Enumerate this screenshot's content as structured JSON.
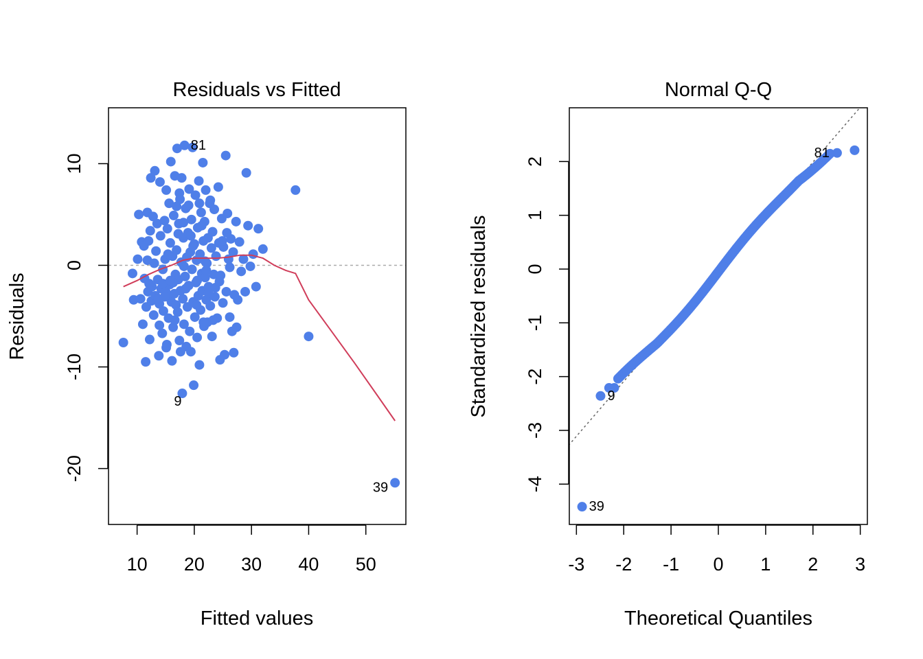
{
  "colors": {
    "points": "#4F7FE8",
    "smooth": "#D03D5A",
    "refline": "#AAAAAA",
    "qqline": "#666666",
    "frame": "#000000"
  },
  "chart_data": [
    {
      "type": "scatter",
      "title": "Residuals vs Fitted",
      "xlabel": "Fitted values",
      "ylabel": "Residuals",
      "xlim": [
        5,
        57
      ],
      "ylim": [
        -25.5,
        15.5
      ],
      "xticks": [
        10,
        20,
        30,
        40,
        50
      ],
      "yticks": [
        -20,
        -10,
        0,
        10
      ],
      "hline": 0,
      "points": [
        [
          7.6,
          -7.6
        ],
        [
          9.2,
          -0.8
        ],
        [
          9.4,
          -3.4
        ],
        [
          10.1,
          0.6
        ],
        [
          10.3,
          5
        ],
        [
          10.6,
          -3.3
        ],
        [
          10.8,
          2.3
        ],
        [
          11,
          -5.8
        ],
        [
          11.2,
          1.9
        ],
        [
          11.3,
          -1.3
        ],
        [
          11.5,
          -9.5
        ],
        [
          11.6,
          -4.1
        ],
        [
          11.8,
          5.2
        ],
        [
          11.9,
          -2.6
        ],
        [
          12,
          2.4
        ],
        [
          12.2,
          -7.3
        ],
        [
          12.3,
          3.4
        ],
        [
          12.4,
          8.6
        ],
        [
          12.5,
          -3.5
        ],
        [
          12.6,
          -2.1
        ],
        [
          12.8,
          4.8
        ],
        [
          12.9,
          -4.9
        ],
        [
          13,
          0.2
        ],
        [
          13.1,
          9.3
        ],
        [
          13.2,
          -3
        ],
        [
          13.3,
          1.4
        ],
        [
          13.5,
          4.1
        ],
        [
          13.6,
          -1.4
        ],
        [
          13.8,
          -8.9
        ],
        [
          13.9,
          -3.8
        ],
        [
          14,
          8.2
        ],
        [
          14.1,
          2.9
        ],
        [
          14.2,
          -2.3
        ],
        [
          14.4,
          -6.7
        ],
        [
          14.5,
          -0.4
        ],
        [
          14.6,
          -4.5
        ],
        [
          14.8,
          4.4
        ],
        [
          14.9,
          0.6
        ],
        [
          15,
          -2.6
        ],
        [
          15.1,
          7.4
        ],
        [
          15.2,
          -7.8
        ],
        [
          15.3,
          3.6
        ],
        [
          15.4,
          -3.1
        ],
        [
          15.5,
          -5.2
        ],
        [
          15.6,
          6.1
        ],
        [
          15.7,
          -1.9
        ],
        [
          15.8,
          2.2
        ],
        [
          15.9,
          10.2
        ],
        [
          16,
          -3.6
        ],
        [
          16.1,
          -9.4
        ],
        [
          16.2,
          0.9
        ],
        [
          16.3,
          -6.1
        ],
        [
          16.4,
          4.9
        ],
        [
          16.5,
          -2.8
        ],
        [
          16.6,
          8.8
        ],
        [
          16.7,
          -0.9
        ],
        [
          16.8,
          -3.9
        ],
        [
          16.9,
          1.5
        ],
        [
          17,
          11.5
        ],
        [
          17.1,
          -4.6
        ],
        [
          17.2,
          -1.4
        ],
        [
          17.3,
          4.1
        ],
        [
          17.4,
          -7.4
        ],
        [
          17.5,
          6.5
        ],
        [
          17.6,
          -2.5
        ],
        [
          17.7,
          0.3
        ],
        [
          17.8,
          8.6
        ],
        [
          17.9,
          -12.6
        ],
        [
          18,
          -3.3
        ],
        [
          18.1,
          2.7
        ],
        [
          18.2,
          -5.8
        ],
        [
          18.3,
          11.8
        ],
        [
          18.4,
          -1.1
        ],
        [
          18.5,
          5.6
        ],
        [
          18.6,
          -8
        ],
        [
          18.7,
          0.8
        ],
        [
          18.8,
          -4.1
        ],
        [
          18.9,
          3.2
        ],
        [
          19,
          -2
        ],
        [
          19.1,
          7.5
        ],
        [
          19.2,
          -6.5
        ],
        [
          19.3,
          1.3
        ],
        [
          19.4,
          -8.5
        ],
        [
          19.5,
          4.5
        ],
        [
          19.6,
          -0.4
        ],
        [
          19.7,
          11.6
        ],
        [
          19.8,
          -3.6
        ],
        [
          19.9,
          -11.8
        ],
        [
          20,
          2.1
        ],
        [
          20.1,
          -5.1
        ],
        [
          20.2,
          6.9
        ],
        [
          20.3,
          -1.7
        ],
        [
          20.4,
          0.5
        ],
        [
          20.5,
          -7.1
        ],
        [
          20.6,
          3.7
        ],
        [
          20.7,
          -3
        ],
        [
          20.8,
          8.3
        ],
        [
          20.9,
          -9.8
        ],
        [
          21,
          1.1
        ],
        [
          21.1,
          -4.4
        ],
        [
          21.2,
          5.2
        ],
        [
          21.3,
          -0.8
        ],
        [
          21.4,
          -2.5
        ],
        [
          21.5,
          10.1
        ],
        [
          21.6,
          2.4
        ],
        [
          21.7,
          -6
        ],
        [
          21.8,
          4.3
        ],
        [
          21.9,
          -1.2
        ],
        [
          22,
          7.4
        ],
        [
          22.1,
          -3.4
        ],
        [
          22.2,
          0.2
        ],
        [
          22.3,
          -5.6
        ],
        [
          22.4,
          2.7
        ],
        [
          22.5,
          -2.1
        ],
        [
          22.7,
          6.1
        ],
        [
          22.8,
          -4
        ],
        [
          23,
          1.7
        ],
        [
          23.1,
          -7
        ],
        [
          23.2,
          3.3
        ],
        [
          23.4,
          -0.9
        ],
        [
          23.5,
          5.5
        ],
        [
          23.6,
          -3.1
        ],
        [
          23.8,
          0.9
        ],
        [
          24,
          -5.2
        ],
        [
          24.2,
          7.7
        ],
        [
          24.3,
          2.2
        ],
        [
          24.5,
          -9.3
        ],
        [
          24.6,
          -1
        ],
        [
          24.8,
          4.6
        ],
        [
          25,
          -3.7
        ],
        [
          25.1,
          1.8
        ],
        [
          25.3,
          -8.8
        ],
        [
          25.5,
          10.8
        ],
        [
          25.6,
          -2.6
        ],
        [
          25.8,
          5.1
        ],
        [
          26,
          0.6
        ],
        [
          26.2,
          -5.1
        ],
        [
          26.4,
          2.6
        ],
        [
          26.6,
          -6.5
        ],
        [
          26.8,
          1.3
        ],
        [
          27,
          -2.9
        ],
        [
          27.3,
          4.3
        ],
        [
          27.6,
          -3.4
        ],
        [
          27.9,
          2.3
        ],
        [
          28.2,
          -0.6
        ],
        [
          28.6,
          0.6
        ],
        [
          28.9,
          -2.6
        ],
        [
          29.1,
          9.1
        ],
        [
          29.4,
          3.9
        ],
        [
          29.8,
          -0.1
        ],
        [
          30.3,
          1.1
        ],
        [
          30.8,
          -2.1
        ],
        [
          31.2,
          3.6
        ],
        [
          32,
          1.6
        ],
        [
          37.7,
          7.4
        ],
        [
          40,
          -7
        ],
        [
          55.1,
          -21.4
        ],
        [
          16.3,
          -1.7
        ],
        [
          18.5,
          -2.3
        ],
        [
          20.5,
          -1.5
        ],
        [
          22.5,
          -2.7
        ],
        [
          14.5,
          -1.8
        ],
        [
          17.2,
          3.1
        ],
        [
          19.8,
          1.9
        ],
        [
          21.9,
          0.4
        ],
        [
          13.7,
          -3.3
        ],
        [
          15.8,
          -1.5
        ],
        [
          23.7,
          -2.2
        ],
        [
          19,
          5.9
        ],
        [
          16.6,
          -5.4
        ],
        [
          24.4,
          -1.6
        ],
        [
          12.1,
          -1.8
        ],
        [
          20.4,
          -3.9
        ],
        [
          26.2,
          -0.2
        ],
        [
          18.2,
          -0.1
        ],
        [
          15.4,
          1.1
        ],
        [
          21.3,
          3.9
        ],
        [
          17.6,
          -8.5
        ],
        [
          22.8,
          6.4
        ],
        [
          13.9,
          -5.9
        ],
        [
          25.7,
          3.2
        ],
        [
          19.4,
          2.9
        ],
        [
          16.9,
          5.8
        ],
        [
          23.3,
          -5.4
        ],
        [
          11.8,
          0.5
        ],
        [
          20.9,
          6.1
        ],
        [
          14.8,
          -3.1
        ],
        [
          27.4,
          -6.1
        ],
        [
          24.9,
          2.4
        ],
        [
          18.1,
          4.2
        ],
        [
          22.1,
          -0.5
        ],
        [
          15.1,
          -8.1
        ],
        [
          26.9,
          -8.6
        ],
        [
          17.4,
          7.1
        ],
        [
          21.6,
          -5.6
        ]
      ],
      "labels": [
        {
          "text": "81",
          "x": 18.3,
          "y": 11.8
        },
        {
          "text": "9",
          "x": 17.9,
          "y": -12.6
        },
        {
          "text": "39",
          "x": 55.1,
          "y": -21.4
        }
      ],
      "smooth": [
        [
          7.6,
          -2.1
        ],
        [
          10,
          -1.5
        ],
        [
          12,
          -0.9
        ],
        [
          14,
          -0.4
        ],
        [
          16,
          0
        ],
        [
          18,
          0.5
        ],
        [
          20,
          0.7
        ],
        [
          22,
          0.7
        ],
        [
          24,
          0.7
        ],
        [
          26,
          0.8
        ],
        [
          28,
          1
        ],
        [
          30,
          1
        ],
        [
          32,
          0.7
        ],
        [
          34,
          0
        ],
        [
          36,
          -0.5
        ],
        [
          37.7,
          -0.8
        ],
        [
          40,
          -3.4
        ],
        [
          44,
          -6.5
        ],
        [
          48,
          -9.6
        ],
        [
          52,
          -12.8
        ],
        [
          55.1,
          -15.3
        ]
      ]
    },
    {
      "type": "scatter",
      "title": "Normal Q-Q",
      "xlabel": "Theoretical Quantiles",
      "ylabel": "Standardized residuals",
      "xlim": [
        -3.15,
        3.15
      ],
      "ylim": [
        -4.75,
        3
      ],
      "xticks": [
        -3,
        -2,
        -1,
        0,
        1,
        2,
        3
      ],
      "yticks": [
        -4,
        -3,
        -2,
        -1,
        0,
        1,
        2
      ],
      "ref_line": {
        "intercept": -0.05,
        "slope": 1.02
      },
      "extreme_points": [
        [
          -2.88,
          -4.42
        ],
        [
          -2.49,
          -2.36
        ],
        [
          -2.31,
          -2.21
        ],
        [
          -2.2,
          -2.21
        ],
        [
          2.51,
          2.16
        ],
        [
          2.88,
          2.21
        ]
      ],
      "labels": [
        {
          "text": "39",
          "x": -2.88,
          "y": -4.42
        },
        {
          "text": "9",
          "x": -2.49,
          "y": -2.36
        },
        {
          "text": "81",
          "x": 2.51,
          "y": 2.16
        }
      ]
    }
  ]
}
